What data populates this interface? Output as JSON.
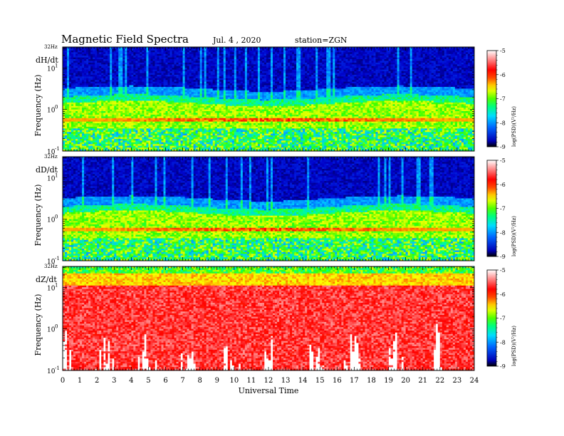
{
  "header": {
    "title": "Magnetic  Field  Spectra",
    "date": "Jul.  4  , 2020",
    "station": "station=ZGN"
  },
  "colors": {
    "background": "#ffffff",
    "frame": "#000000",
    "colormap": [
      "#000000",
      "#0000c8",
      "#0050ff",
      "#00c8ff",
      "#00ff96",
      "#32ff00",
      "#c8ff00",
      "#ffff00",
      "#ffaa00",
      "#ff3c00",
      "#ff0000",
      "#ff6464",
      "#ffc8c8",
      "#ffffff"
    ]
  },
  "chart_data": [
    {
      "type": "heatmap",
      "panel_label": "dH/dt",
      "ylabel": "Frequency  (Hz)",
      "xlabel": "",
      "x_range": [
        0,
        24
      ],
      "y_scale": "log",
      "y_range": [
        0.1,
        32
      ],
      "y_top_label": "32Hz",
      "y_ticks": [
        {
          "value": 10,
          "label": "10",
          "exp": "1"
        },
        {
          "value": 1,
          "label": "10",
          "exp": "0"
        },
        {
          "value": 0.1,
          "label": "10",
          "exp": "-1"
        }
      ],
      "colorbar": {
        "label": "log(PSD)(V²/Hz)",
        "range": [
          -9,
          -5
        ],
        "ticks": [
          "-5",
          "-6",
          "-7",
          "-8",
          "-9"
        ]
      },
      "features": {
        "low_noise_top_hz": 2.0,
        "band_hz": 0.55
      }
    },
    {
      "type": "heatmap",
      "panel_label": "dD/dt",
      "ylabel": "Frequency  (Hz)",
      "xlabel": "",
      "x_range": [
        0,
        24
      ],
      "y_scale": "log",
      "y_range": [
        0.1,
        32
      ],
      "y_top_label": "32Hz",
      "y_ticks": [
        {
          "value": 10,
          "label": "10",
          "exp": "1"
        },
        {
          "value": 1,
          "label": "10",
          "exp": "0"
        },
        {
          "value": 0.1,
          "label": "10",
          "exp": "-1"
        }
      ],
      "colorbar": {
        "label": "log(PSD)(V²/Hz)",
        "range": [
          -9,
          -5
        ],
        "ticks": [
          "-5",
          "-6",
          "-7",
          "-8",
          "-9"
        ]
      },
      "features": {
        "low_noise_top_hz": 2.0,
        "band_hz": 0.55
      }
    },
    {
      "type": "heatmap",
      "panel_label": "dZ/dt",
      "ylabel": "Frequency  (Hz)",
      "xlabel": "Universal  Time",
      "x_range": [
        0,
        24
      ],
      "x_ticks": [
        "0",
        "1",
        "2",
        "3",
        "4",
        "5",
        "6",
        "7",
        "8",
        "9",
        "10",
        "11",
        "12",
        "13",
        "14",
        "15",
        "16",
        "17",
        "18",
        "19",
        "20",
        "21",
        "22",
        "23",
        "24"
      ],
      "y_scale": "log",
      "y_range": [
        0.1,
        32
      ],
      "y_top_label": "32Hz",
      "y_ticks": [
        {
          "value": 10,
          "label": "10",
          "exp": "1"
        },
        {
          "value": 1,
          "label": "10",
          "exp": "0"
        },
        {
          "value": 0.1,
          "label": "10",
          "exp": "-1"
        }
      ],
      "colorbar": {
        "label": "log(PSD)(V²/Hz)",
        "range": [
          -9,
          -5
        ],
        "ticks": [
          "-5",
          "-6",
          "-7",
          "-8",
          "-9"
        ]
      },
      "features": {
        "high_power_top_hz": 25
      }
    }
  ]
}
